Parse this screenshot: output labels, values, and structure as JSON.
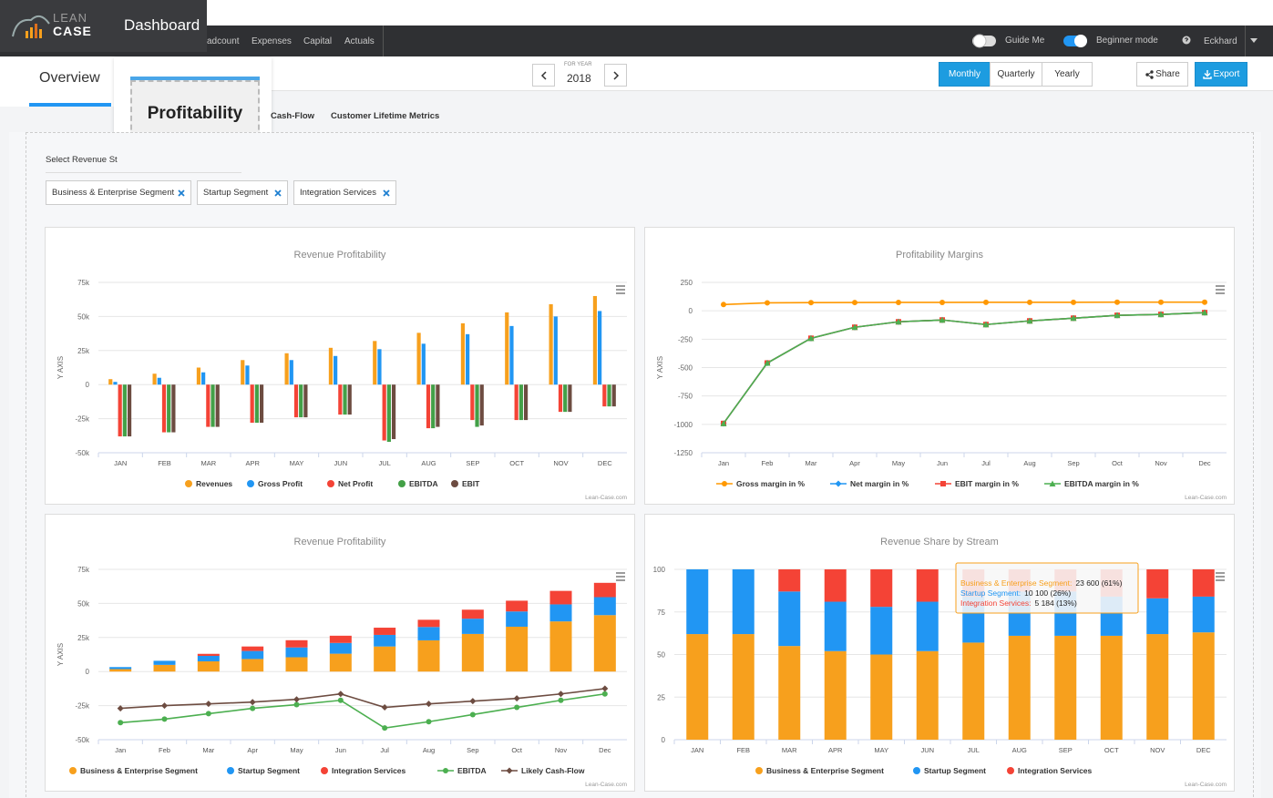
{
  "header": {
    "logo_top": "LEAN",
    "logo_bottom": "CASE",
    "title": "Dashboard",
    "nav": [
      "adcount",
      "Expenses",
      "Capital",
      "Actuals"
    ],
    "guide": "Guide Me",
    "beginner": "Beginner mode",
    "user": "Eckhard"
  },
  "toolbar": {
    "tab": "Overview",
    "popup": "Profitability",
    "year_caption": "FOR YEAR",
    "year": "2018",
    "periods": [
      "Monthly",
      "Quarterly",
      "Yearly"
    ],
    "share": "Share",
    "export": "Export"
  },
  "subtabs": [
    "Cash-Flow",
    "Customer Lifetime Metrics"
  ],
  "filter": {
    "label": "Select Revenue St",
    "chips": [
      "Business & Enterprise Segment",
      "Startup Segment",
      "Integration Services"
    ]
  },
  "chart_data": [
    {
      "type": "bar",
      "title": "Revenue Profitability",
      "y_label": "Y AXIS",
      "credit": "Lean-Case.com",
      "categories": [
        "JAN",
        "FEB",
        "MAR",
        "APR",
        "MAY",
        "JUN",
        "JUL",
        "AUG",
        "SEP",
        "OCT",
        "NOV",
        "DEC"
      ],
      "ylim": [
        -50000,
        75000
      ],
      "yticks": [
        {
          "value": 75000,
          "label": "75k"
        },
        {
          "value": 50000,
          "label": "50k"
        },
        {
          "value": 25000,
          "label": "25k"
        },
        0,
        {
          "value": -25000,
          "label": "-25k"
        },
        {
          "value": -50000,
          "label": "-50k"
        }
      ],
      "grid": true,
      "series": [
        {
          "name": "Revenues",
          "color": "#f7a01d",
          "values": [
            4000,
            8000,
            12500,
            18000,
            23000,
            27000,
            32000,
            38000,
            45000,
            53000,
            59000,
            65000
          ]
        },
        {
          "name": "Gross Profit",
          "color": "#2196f3",
          "values": [
            2000,
            5000,
            9000,
            14000,
            18000,
            21000,
            26000,
            30000,
            37000,
            43000,
            50000,
            54000
          ]
        },
        {
          "name": "Net Profit",
          "color": "#f44336",
          "values": [
            -38000,
            -35000,
            -31000,
            -28000,
            -24000,
            -22000,
            -41000,
            -32000,
            -26000,
            -26000,
            -20000,
            -16000
          ]
        },
        {
          "name": "EBITDA",
          "color": "#43a047",
          "values": [
            -38000,
            -35000,
            -31000,
            -28000,
            -24000,
            -22000,
            -42000,
            -32000,
            -31000,
            -26000,
            -20000,
            -16000
          ]
        },
        {
          "name": "EBIT",
          "color": "#6d4c41",
          "values": [
            -38000,
            -35000,
            -31000,
            -28000,
            -24000,
            -22000,
            -40000,
            -31000,
            -30000,
            -26000,
            -20000,
            -16000
          ]
        }
      ]
    },
    {
      "type": "line",
      "title": "Profitability Margins",
      "y_label": "Y AXIS",
      "credit": "Lean-Case.com",
      "categories": [
        "Jan",
        "Feb",
        "Mar",
        "Apr",
        "May",
        "Jun",
        "Jul",
        "Aug",
        "Sep",
        "Oct",
        "Nov",
        "Dec"
      ],
      "ylim": [
        -1250,
        250
      ],
      "yticks": [
        250,
        0,
        -250,
        -500,
        -750,
        -1000,
        -1250
      ],
      "grid": true,
      "series": [
        {
          "name": "Gross margin in %",
          "color": "#ff9800",
          "marker": "circle",
          "values": [
            55,
            70,
            72,
            73,
            74,
            74,
            75,
            75,
            75,
            76,
            76,
            76
          ]
        },
        {
          "name": "Net margin in %",
          "color": "#2196f3",
          "marker": "diamond",
          "values": [
            -992,
            -460,
            -242,
            -145,
            -97,
            -81,
            -121,
            -89,
            -65,
            -40,
            -32,
            -16
          ]
        },
        {
          "name": "EBIT margin in %",
          "color": "#f44336",
          "marker": "square",
          "values": [
            -992,
            -460,
            -242,
            -145,
            -97,
            -81,
            -121,
            -89,
            -65,
            -40,
            -32,
            -16
          ]
        },
        {
          "name": "EBITDA margin in %",
          "color": "#4caf50",
          "marker": "triangle",
          "values": [
            -992,
            -460,
            -242,
            -145,
            -97,
            -81,
            -121,
            -89,
            -65,
            -40,
            -32,
            -16
          ]
        }
      ]
    },
    {
      "type": "bar",
      "stacked": true,
      "title": "Revenue Profitability",
      "y_label": "Y AXIS",
      "credit": "Lean-Case.com",
      "categories": [
        "Jan",
        "Feb",
        "Mar",
        "Apr",
        "May",
        "Jun",
        "Jul",
        "Aug",
        "Sep",
        "Oct",
        "Nov",
        "Dec"
      ],
      "ylim": [
        -50000,
        75000
      ],
      "yticks": [
        {
          "value": 75000,
          "label": "75k"
        },
        {
          "value": 50000,
          "label": "50k"
        },
        {
          "value": 25000,
          "label": "25k"
        },
        0,
        {
          "value": -25000,
          "label": "-25k"
        },
        {
          "value": -50000,
          "label": "-50k"
        }
      ],
      "grid": true,
      "series": [
        {
          "name": "Business & Enterprise Segment",
          "color": "#f7a01d",
          "values": [
            1800,
            4900,
            7500,
            9200,
            10500,
            13100,
            18400,
            22900,
            27600,
            32900,
            36800,
            41400
          ]
        },
        {
          "name": "Startup Segment",
          "color": "#2196f3",
          "values": [
            1500,
            3000,
            4000,
            5900,
            7200,
            7900,
            8500,
            9800,
            11200,
            11200,
            12500,
            13200
          ]
        },
        {
          "name": "Integration Services",
          "color": "#f44336",
          "values": [
            0,
            0,
            1500,
            3300,
            5300,
            5300,
            5300,
            5300,
            6600,
            7900,
            9900,
            10500
          ]
        },
        {
          "name": "EBITDA",
          "type": "line",
          "marker": "circle",
          "color": "#4caf50",
          "values": [
            -37500,
            -34900,
            -30900,
            -27000,
            -24300,
            -21100,
            -41400,
            -36800,
            -31600,
            -26300,
            -21100,
            -16400
          ]
        },
        {
          "name": "Likely Cash-Flow",
          "type": "line",
          "marker": "diamond",
          "color": "#6d4c41",
          "values": [
            -27000,
            -25000,
            -23700,
            -22400,
            -20400,
            -16400,
            -26300,
            -23700,
            -21700,
            -19700,
            -16400,
            -12500
          ]
        }
      ]
    },
    {
      "type": "bar",
      "stacked": true,
      "title": "Revenue Share by Stream",
      "credit": "Lean-Case.com",
      "categories": [
        "JAN",
        "FEB",
        "MAR",
        "APR",
        "MAY",
        "JUN",
        "JUL",
        "AUG",
        "SEP",
        "OCT",
        "NOV",
        "DEC"
      ],
      "ylim": [
        0,
        100
      ],
      "yticks": [
        100,
        75,
        50,
        25,
        0
      ],
      "grid": true,
      "series": [
        {
          "name": "Business & Enterprise Segment",
          "color": "#f7a01d",
          "values": [
            62,
            62,
            55,
            52,
            50,
            52,
            57,
            61,
            61,
            61,
            62,
            63
          ]
        },
        {
          "name": "Startup Segment",
          "color": "#2196f3",
          "values": [
            38,
            38,
            32,
            29,
            28,
            29,
            27,
            26,
            26,
            23,
            21,
            21
          ]
        },
        {
          "name": "Integration Services",
          "color": "#f44336",
          "values": [
            0,
            0,
            13,
            19,
            22,
            19,
            16,
            13,
            13,
            16,
            17,
            16
          ]
        }
      ],
      "tooltip": [
        {
          "name": "Business & Enterprise Segment:",
          "value": "23 600 (61%)"
        },
        {
          "name": "Startup Segment:",
          "value": "10 100 (26%)"
        },
        {
          "name": "Integration Services:",
          "value": "5 184 (13%)"
        }
      ]
    }
  ]
}
